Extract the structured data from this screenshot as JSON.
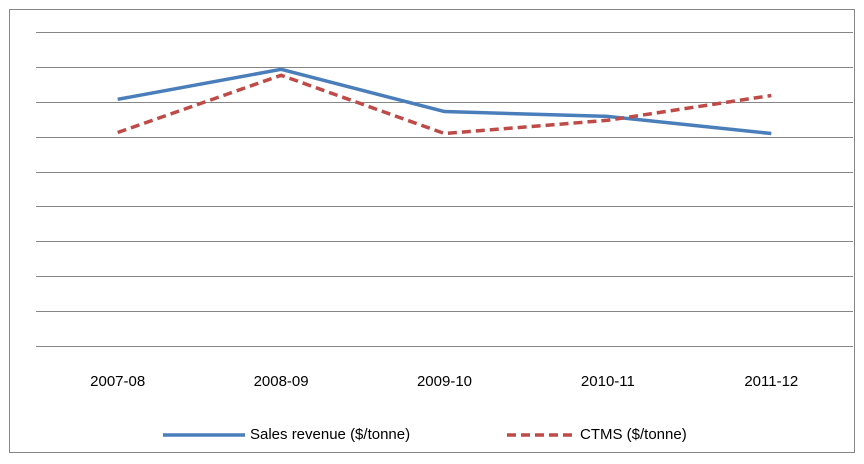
{
  "chart_data": {
    "type": "line",
    "categories": [
      "2007-08",
      "2008-09",
      "2009-10",
      "2010-11",
      "2011-12"
    ],
    "series": [
      {
        "name": "Sales revenue ($/tonne)",
        "color": "#4a7ebb",
        "dash": false,
        "values": [
          7.07,
          7.93,
          6.72,
          6.58,
          6.09
        ]
      },
      {
        "name": "CTMS ($/tonne)",
        "color": "#be4b48",
        "dash": true,
        "values": [
          6.12,
          7.76,
          6.09,
          6.47,
          7.18
        ]
      }
    ],
    "ylim": [
      0,
      9
    ],
    "yticks": [
      0,
      1,
      2,
      3,
      4,
      5,
      6,
      7,
      8,
      9
    ],
    "grid": true,
    "legend": "bottom"
  }
}
